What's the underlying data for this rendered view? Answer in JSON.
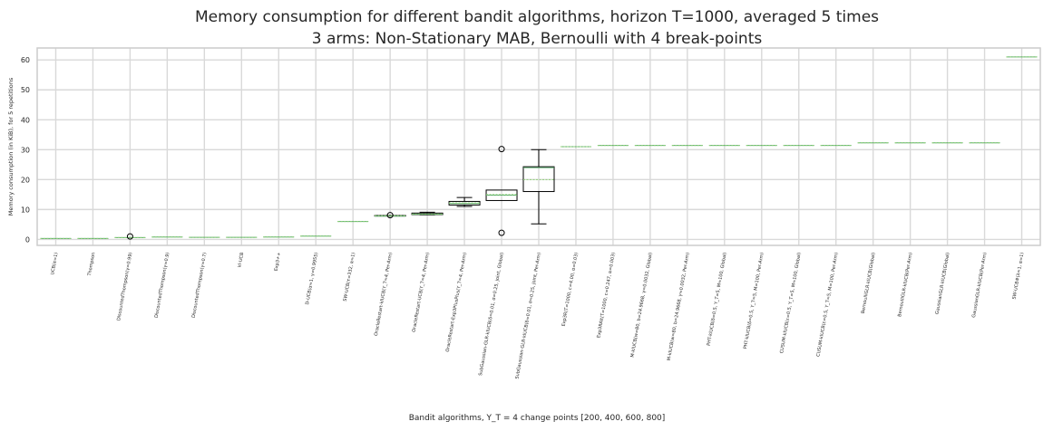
{
  "chart_data": {
    "type": "boxplot",
    "title_line1": "Memory consumption for different bandit algorithms, horizon T=1000, averaged 5 times",
    "title_line2": "3 arms: Non-Stationary MAB, Bernoulli with 4 break-points",
    "xlabel": "Bandit algorithms, Υ_T = 4 change points [200, 400, 600, 800]",
    "ylabel": "Memory consumption (in KiB), for 5 repetitions",
    "ylim": [
      -2,
      64
    ],
    "yticks": [
      0,
      10,
      20,
      30,
      40,
      50,
      60
    ],
    "grid": true,
    "median_color": "#55a868",
    "mean_color": "#8fd175",
    "categories": [
      "UCB(α=1)",
      "Thompson",
      "DiscountedThompson(γ=0.99)",
      "DiscountedThompson(γ=0.9)",
      "DiscountedThompson(γ=0.7)",
      "kl-UCB",
      "Exp3++",
      "D-UCB(α=1, γ=0.9955)",
      "SW-UCB(τ=332, α=1)",
      "OracleRestart-klUCB(Υ_T=4, Per-Arm)",
      "OracleRestart-UCB(Υ_T=4, Per-Arm)",
      "OracleRestart-Exp3PlusPlus(Υ_T=4, Per-Arm)",
      "SubGaussian-GLR-klUCB(δ=0.01, σ=0.25, joint, Global)",
      "SubGaussian-GLR-klUCB(δ=0.01, σ=0.25, joint, Per-Arm)",
      "Exp3R(T=1000, c=4.00, α=0.03)",
      "Exp3RAlt(T=1000, c=0.247, α=0.003)",
      "M-klUCB(w=80, b=24.9668, γ=0.0032, Global)",
      "M-klUCB(w=80, b=24.9668, γ=0.0032, Per-Arm)",
      "PHT-klUCB(δ=0.5, Υ_T=5, M=100, Global)",
      "PHT-klUCB(δ=0.5, Υ_T=5, M=100, Per-Arm)",
      "CUSUM-klUCB(ε=0.5, Υ_T=5, M=100, Global)",
      "CUSUM-klUCB(ε=0.5, Υ_T=5, M=100, Per-Arm)",
      "BernoulliGLR-klUCB(Global)",
      "BernoulliGLR-klUCB(Per-Arm)",
      "GaussianGLR-klUCB(Global)",
      "GaussianGLR-klUCB(Per-Arm)",
      "SW-UCB#(λ=1, α=1)"
    ],
    "boxes": [
      {
        "q1": 0.3,
        "median": 0.3,
        "q3": 0.3,
        "wlo": 0.3,
        "whi": 0.3,
        "mean": 0.3,
        "fliers": []
      },
      {
        "q1": 0.3,
        "median": 0.3,
        "q3": 0.3,
        "wlo": 0.3,
        "whi": 0.3,
        "mean": 0.3,
        "fliers": []
      },
      {
        "q1": 0.6,
        "median": 0.6,
        "q3": 0.6,
        "wlo": 0.6,
        "whi": 0.6,
        "mean": 0.6,
        "fliers": [
          1.0
        ]
      },
      {
        "q1": 0.8,
        "median": 0.8,
        "q3": 0.8,
        "wlo": 0.8,
        "whi": 0.8,
        "mean": 0.8,
        "fliers": []
      },
      {
        "q1": 0.7,
        "median": 0.7,
        "q3": 0.7,
        "wlo": 0.7,
        "whi": 0.7,
        "mean": 0.7,
        "fliers": []
      },
      {
        "q1": 0.7,
        "median": 0.7,
        "q3": 0.7,
        "wlo": 0.7,
        "whi": 0.7,
        "mean": 0.7,
        "fliers": []
      },
      {
        "q1": 0.8,
        "median": 0.8,
        "q3": 0.8,
        "wlo": 0.8,
        "whi": 0.8,
        "mean": 0.8,
        "fliers": []
      },
      {
        "q1": 1.1,
        "median": 1.1,
        "q3": 1.1,
        "wlo": 1.1,
        "whi": 1.1,
        "mean": 1.1,
        "fliers": []
      },
      {
        "q1": 6.0,
        "median": 6.0,
        "q3": 6.0,
        "wlo": 6.0,
        "whi": 6.0,
        "mean": 6.0,
        "fliers": []
      },
      {
        "q1": 7.8,
        "median": 7.8,
        "q3": 8.0,
        "wlo": 7.8,
        "whi": 8.0,
        "mean": 7.9,
        "fliers": [
          8.1
        ]
      },
      {
        "q1": 8.3,
        "median": 8.4,
        "q3": 8.8,
        "wlo": 8.2,
        "whi": 9.1,
        "mean": 8.5,
        "fliers": []
      },
      {
        "q1": 11.5,
        "median": 12.0,
        "q3": 12.7,
        "wlo": 11.0,
        "whi": 14.0,
        "mean": 12.2,
        "fliers": []
      },
      {
        "q1": 13.0,
        "median": 14.8,
        "q3": 16.5,
        "wlo": 13.0,
        "whi": 16.5,
        "mean": 15.0,
        "fliers": [
          30.2,
          2.2
        ]
      },
      {
        "q1": 16.0,
        "median": 24.0,
        "q3": 24.3,
        "wlo": 5.2,
        "whi": 30.0,
        "mean": 20.0,
        "fliers": []
      },
      {
        "q1": 31.0,
        "median": 31.0,
        "q3": 31.0,
        "wlo": 31.0,
        "whi": 31.0,
        "mean": 31.0,
        "fliers": []
      },
      {
        "q1": 31.4,
        "median": 31.4,
        "q3": 31.4,
        "wlo": 31.4,
        "whi": 31.4,
        "mean": 31.4,
        "fliers": []
      },
      {
        "q1": 31.4,
        "median": 31.4,
        "q3": 31.4,
        "wlo": 31.4,
        "whi": 31.4,
        "mean": 31.4,
        "fliers": []
      },
      {
        "q1": 31.4,
        "median": 31.4,
        "q3": 31.4,
        "wlo": 31.4,
        "whi": 31.4,
        "mean": 31.4,
        "fliers": []
      },
      {
        "q1": 31.4,
        "median": 31.4,
        "q3": 31.4,
        "wlo": 31.4,
        "whi": 31.4,
        "mean": 31.4,
        "fliers": []
      },
      {
        "q1": 31.4,
        "median": 31.4,
        "q3": 31.4,
        "wlo": 31.4,
        "whi": 31.4,
        "mean": 31.4,
        "fliers": []
      },
      {
        "q1": 31.4,
        "median": 31.4,
        "q3": 31.4,
        "wlo": 31.4,
        "whi": 31.4,
        "mean": 31.4,
        "fliers": []
      },
      {
        "q1": 31.4,
        "median": 31.4,
        "q3": 31.4,
        "wlo": 31.4,
        "whi": 31.4,
        "mean": 31.4,
        "fliers": []
      },
      {
        "q1": 32.3,
        "median": 32.3,
        "q3": 32.3,
        "wlo": 32.3,
        "whi": 32.3,
        "mean": 32.3,
        "fliers": []
      },
      {
        "q1": 32.3,
        "median": 32.3,
        "q3": 32.3,
        "wlo": 32.3,
        "whi": 32.3,
        "mean": 32.3,
        "fliers": []
      },
      {
        "q1": 32.3,
        "median": 32.3,
        "q3": 32.3,
        "wlo": 32.3,
        "whi": 32.3,
        "mean": 32.3,
        "fliers": []
      },
      {
        "q1": 32.3,
        "median": 32.3,
        "q3": 32.3,
        "wlo": 32.3,
        "whi": 32.3,
        "mean": 32.3,
        "fliers": []
      },
      {
        "q1": 61.0,
        "median": 61.0,
        "q3": 61.0,
        "wlo": 61.0,
        "whi": 61.0,
        "mean": 61.0,
        "fliers": []
      }
    ]
  }
}
